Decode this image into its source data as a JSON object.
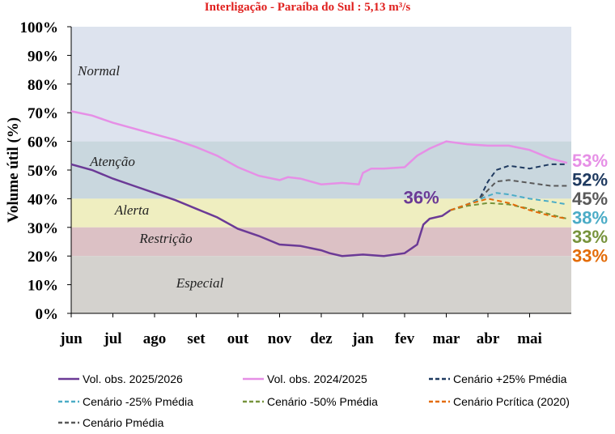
{
  "chart_data": {
    "type": "line",
    "title": "Interligação - Paraíba do Sul : 5,13 m³/s",
    "y_label": "Volume útil (%)",
    "xlim": [
      0,
      12
    ],
    "ylim": [
      0,
      100
    ],
    "xticks": [
      {
        "value": 0,
        "label": "jun"
      },
      {
        "value": 1,
        "label": "jul"
      },
      {
        "value": 2,
        "label": "ago"
      },
      {
        "value": 3,
        "label": "set"
      },
      {
        "value": 4,
        "label": "out"
      },
      {
        "value": 5,
        "label": "nov"
      },
      {
        "value": 6,
        "label": "dez"
      },
      {
        "value": 7,
        "label": "jan"
      },
      {
        "value": 8,
        "label": "fev"
      },
      {
        "value": 9,
        "label": "mar"
      },
      {
        "value": 10,
        "label": "abr"
      },
      {
        "value": 11,
        "label": "mai"
      }
    ],
    "yticks": [
      {
        "value": 0,
        "label": "0%"
      },
      {
        "value": 10,
        "label": "10%"
      },
      {
        "value": 20,
        "label": "20%"
      },
      {
        "value": 30,
        "label": "30%"
      },
      {
        "value": 40,
        "label": "40%"
      },
      {
        "value": 50,
        "label": "50%"
      },
      {
        "value": 60,
        "label": "60%"
      },
      {
        "value": 70,
        "label": "70%"
      },
      {
        "value": 80,
        "label": "80%"
      },
      {
        "value": 90,
        "label": "90%"
      },
      {
        "value": 100,
        "label": "100%"
      }
    ],
    "zones": [
      {
        "name": "Normal",
        "from": 60,
        "to": 100,
        "color": "#dde3ee"
      },
      {
        "name": "Atenção",
        "from": 40,
        "to": 60,
        "color": "#c9d7de"
      },
      {
        "name": "Alerta",
        "from": 30,
        "to": 40,
        "color": "#efeec0"
      },
      {
        "name": "Restrição",
        "from": 20,
        "to": 30,
        "color": "#dcc1c5"
      },
      {
        "name": "Especial",
        "from": 0,
        "to": 20,
        "color": "#d4d2ce"
      }
    ],
    "annotation": {
      "text": "36%",
      "x": 9.1,
      "y": 36
    },
    "series": [
      {
        "name": "Vol. obs. 2025/2026",
        "color": "#6b3a96",
        "dash": false,
        "x": [
          0,
          0.5,
          1,
          1.5,
          2,
          2.5,
          3,
          3.5,
          4,
          4.5,
          5,
          5.5,
          6,
          6.2,
          6.5,
          7,
          7.5,
          8,
          8.3,
          8.45,
          8.6,
          8.9,
          9.1
        ],
        "values": [
          52,
          50,
          47,
          44.5,
          42,
          39.5,
          36.5,
          33.5,
          29.5,
          27,
          24,
          23.5,
          22,
          21,
          20,
          20.5,
          20,
          21,
          24,
          31,
          33,
          34,
          36
        ]
      },
      {
        "name": "Vol. obs. 2024/2025",
        "color": "#e68fe6",
        "dash": false,
        "end_label": "53%",
        "x": [
          0,
          0.5,
          1,
          1.5,
          2,
          2.5,
          3,
          3.5,
          4,
          4.5,
          5,
          5.2,
          5.5,
          6,
          6.5,
          6.9,
          7,
          7.2,
          7.5,
          8,
          8.3,
          8.6,
          9,
          9.5,
          10,
          10.5,
          11,
          11.5,
          11.9
        ],
        "values": [
          70.5,
          69,
          66.5,
          64.5,
          62.5,
          60.5,
          58,
          55,
          51,
          48,
          46.5,
          47.5,
          47,
          45,
          45.5,
          45,
          49,
          50.5,
          50.5,
          51,
          55,
          57.5,
          60,
          59,
          58.5,
          58.5,
          57,
          54,
          52.5
        ]
      },
      {
        "name": "Cenário +25% Pmédia",
        "color": "#1f3a60",
        "dash": true,
        "end_label": "52%",
        "x": [
          9.1,
          9.5,
          9.8,
          10,
          10.2,
          10.5,
          11,
          11.5,
          11.9
        ],
        "values": [
          36,
          38,
          40,
          46,
          50,
          51.5,
          50.5,
          52,
          52
        ]
      },
      {
        "name": "Cenário -25% Pmédia",
        "color": "#4bacc6",
        "dash": true,
        "end_label": "38%",
        "x": [
          9.1,
          9.5,
          10,
          10.2,
          10.5,
          11,
          11.5,
          11.9
        ],
        "values": [
          36,
          38,
          41,
          42,
          41.5,
          40,
          39,
          38
        ]
      },
      {
        "name": "Cenário -50% Pmédia",
        "color": "#77933c",
        "dash": true,
        "end_label": "33%",
        "x": [
          9.1,
          9.5,
          10,
          10.5,
          11,
          11.5,
          11.9
        ],
        "values": [
          36,
          37.5,
          38.5,
          38,
          36.5,
          34.5,
          33
        ]
      },
      {
        "name": "Cenário Pcrítica (2020)",
        "color": "#e36c09",
        "dash": true,
        "end_label": "33%",
        "x": [
          9.1,
          9.5,
          10,
          10.5,
          11,
          11.5,
          11.9
        ],
        "values": [
          36,
          38,
          40,
          38.5,
          36,
          34,
          33
        ]
      },
      {
        "name": "Cenário Pmédia",
        "color": "#595959",
        "dash": true,
        "end_label": "45%",
        "x": [
          9.1,
          9.5,
          9.8,
          10,
          10.2,
          10.5,
          11,
          11.5,
          11.9
        ],
        "values": [
          36,
          38,
          40,
          43,
          46,
          46.5,
          45.5,
          44.5,
          44.5
        ]
      }
    ]
  }
}
